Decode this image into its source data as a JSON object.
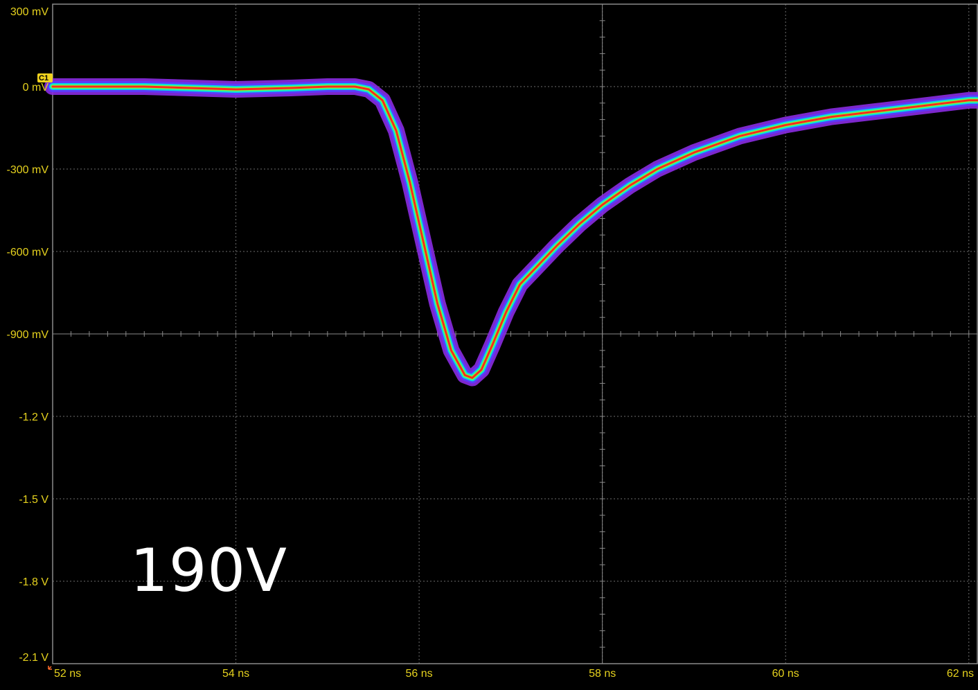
{
  "annotation": "190V",
  "colors": {
    "background": "#000000",
    "grid": "#6e6e6e",
    "tick_text": "#e6d21e",
    "trace_core": "#ff2a1a",
    "trace_mid": "#00e0e0",
    "trace_outer": "#8a2be2"
  },
  "channel_marker": {
    "label": "C1",
    "y": 0
  },
  "trigger_marker_icon": "arrow-down-left-icon",
  "chart_data": {
    "type": "line",
    "title": "",
    "xlabel": "",
    "ylabel": "",
    "xlim": [
      52,
      62.1
    ],
    "ylim": [
      -2.1,
      0.3
    ],
    "grid": true,
    "x_ticks": [
      {
        "value": 52,
        "label": "52 ns"
      },
      {
        "value": 54,
        "label": "54 ns"
      },
      {
        "value": 56,
        "label": "56 ns"
      },
      {
        "value": 58,
        "label": "58 ns"
      },
      {
        "value": 60,
        "label": "60 ns"
      },
      {
        "value": 62,
        "label": "62 ns"
      }
    ],
    "y_ticks": [
      {
        "value": 0.3,
        "label": "300 mV"
      },
      {
        "value": 0,
        "label": "0 mV"
      },
      {
        "value": -0.3,
        "label": "-300 mV"
      },
      {
        "value": -0.6,
        "label": "-600 mV"
      },
      {
        "value": -0.9,
        "label": "-900 mV"
      },
      {
        "value": -1.2,
        "label": "-1.2 V"
      },
      {
        "value": -1.5,
        "label": "-1.5 V"
      },
      {
        "value": -1.8,
        "label": "-1.8 V"
      },
      {
        "value": -2.1,
        "label": "-2.1 V"
      }
    ],
    "series": [
      {
        "x": [
          52,
          53,
          54,
          54.6,
          55.0,
          55.3,
          55.45,
          55.6,
          55.75,
          55.9,
          56.05,
          56.2,
          56.35,
          56.5,
          56.58,
          56.68,
          56.8,
          56.95,
          57.1,
          57.3,
          57.5,
          57.75,
          58.0,
          58.3,
          58.6,
          59.0,
          59.5,
          60.0,
          60.5,
          61.0,
          61.5,
          62.0,
          62.1
        ],
        "y": [
          0,
          0,
          -0.01,
          -0.005,
          0,
          0,
          -0.01,
          -0.05,
          -0.16,
          -0.35,
          -0.57,
          -0.79,
          -0.96,
          -1.05,
          -1.06,
          -1.03,
          -0.94,
          -0.82,
          -0.72,
          -0.65,
          -0.58,
          -0.5,
          -0.43,
          -0.36,
          -0.3,
          -0.24,
          -0.18,
          -0.14,
          -0.11,
          -0.09,
          -0.07,
          -0.05,
          -0.05
        ]
      }
    ]
  }
}
